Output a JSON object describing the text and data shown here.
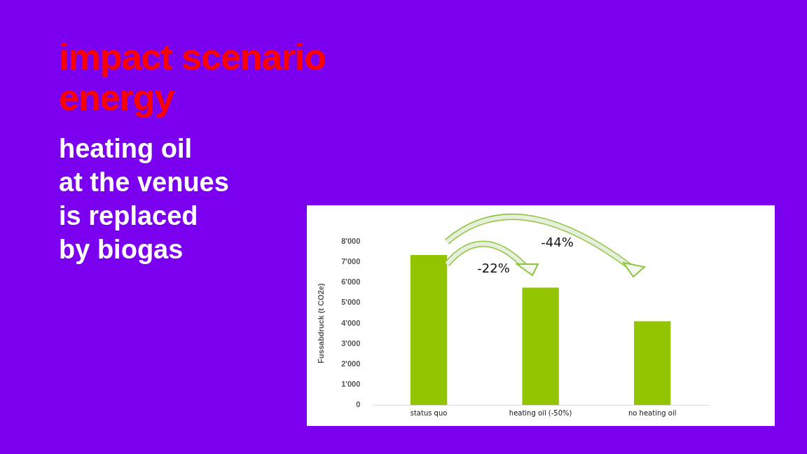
{
  "chart_data": {
    "type": "bar",
    "title": "impact scenario energy",
    "subtitle": "heating oil\nat the venues\nis replaced\nby biogas",
    "categories": [
      "status quo",
      "heating oil (-50%)",
      "no heating oil"
    ],
    "values": [
      7350,
      5750,
      4100
    ],
    "color": "#92c500",
    "ylabel": "Fussabdruck (t CO2e)",
    "ylim": [
      0,
      8000
    ],
    "yticks": [
      0,
      {
        "value": 1000,
        "label": "1'000"
      },
      {
        "value": 2000,
        "label": "2'000"
      },
      {
        "value": 3000,
        "label": "3'000"
      },
      {
        "value": 4000,
        "label": "4'000"
      },
      {
        "value": 5000,
        "label": "5'000"
      },
      {
        "value": 6000,
        "label": "6'000"
      },
      {
        "value": 7000,
        "label": "7'000"
      },
      {
        "value": 8000,
        "label": "8'000"
      }
    ],
    "annotations": [
      {
        "text": "-22%",
        "x": "heating oil (-50%)",
        "y": 5750
      },
      "-44%"
    ],
    "grid": false,
    "legend": false
  }
}
